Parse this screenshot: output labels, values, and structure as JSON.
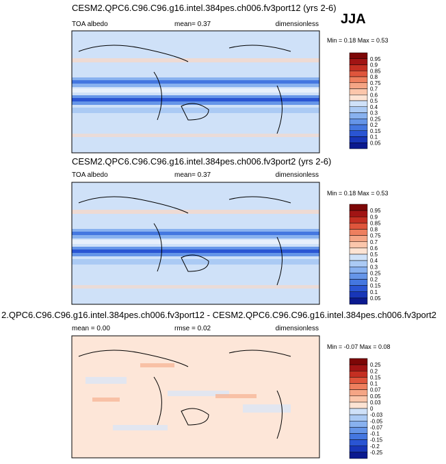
{
  "header": {
    "season": "JJA"
  },
  "panels": [
    {
      "title": "CESM2.QPC6.C96.C96.g16.intel.384pes.ch006.fv3port12 (yrs 2-6)",
      "left": "TOA albedo",
      "center": "mean=  0.37",
      "right": "dimensionless",
      "minmax": "Min =  0.18 Max =  0.53",
      "levels": [
        "0.95",
        "0.9",
        "0.85",
        "0.8",
        "0.75",
        "0.7",
        "0.6",
        "0.5",
        "0.4",
        "0.3",
        "0.25",
        "0.2",
        "0.15",
        "0.1",
        "0.05"
      ]
    },
    {
      "title": "CESM2.QPC6.C96.C96.g16.intel.384pes.ch006.fv3port2 (yrs 2-6)",
      "left": "TOA albedo",
      "center": "mean=  0.37",
      "right": "dimensionless",
      "minmax": "Min =  0.18 Max =  0.53",
      "levels": [
        "0.95",
        "0.9",
        "0.85",
        "0.8",
        "0.75",
        "0.7",
        "0.6",
        "0.5",
        "0.4",
        "0.3",
        "0.25",
        "0.2",
        "0.15",
        "0.1",
        "0.05"
      ]
    },
    {
      "title": "2.QPC6.C96.C96.g16.intel.384pes.ch006.fv3port12 - CESM2.QPC6.C96.C96.g16.intel.384pes.ch006.fv3port2",
      "left": "mean =  0.00",
      "center": "rmse =  0.02",
      "right": "dimensionless",
      "minmax": "Min = -0.07 Max =  0.08",
      "levels": [
        "0.25",
        "0.2",
        "0.15",
        "0.1",
        "0.07",
        "0.05",
        "0.03",
        "0",
        "-0.03",
        "-0.05",
        "-0.07",
        "-0.1",
        "-0.15",
        "-0.2",
        "-0.25"
      ]
    }
  ]
}
